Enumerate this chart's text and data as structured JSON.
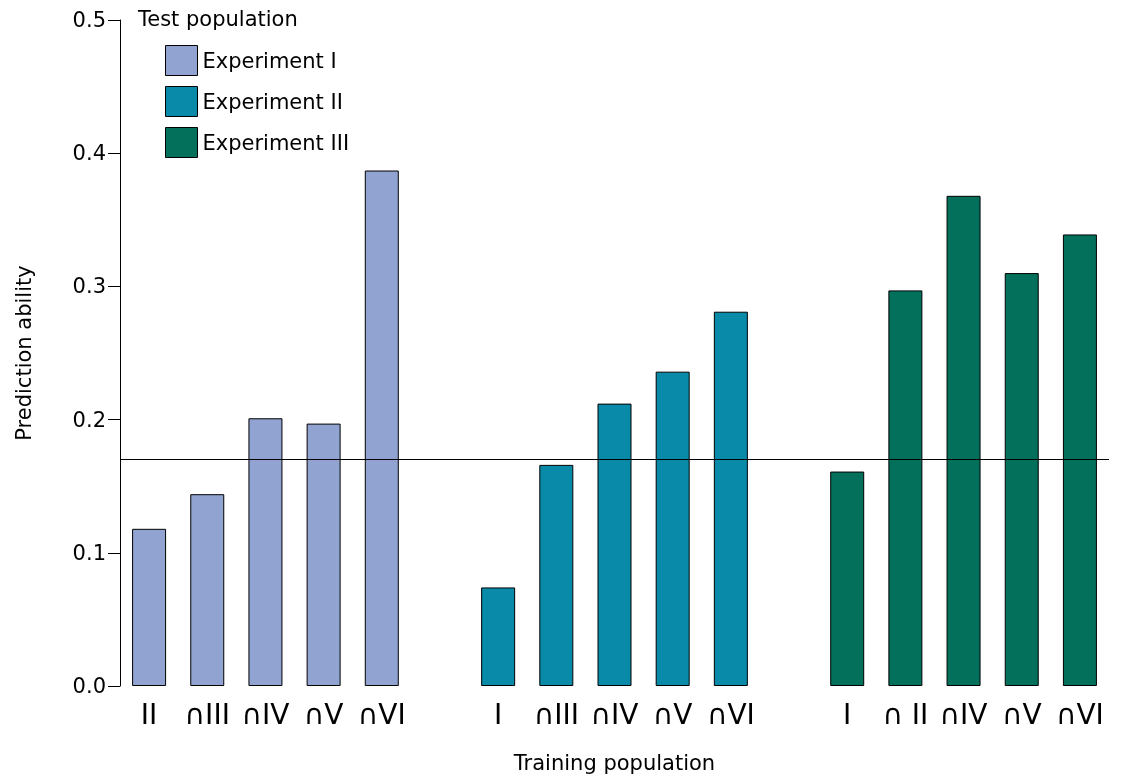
{
  "chart_data": {
    "type": "bar",
    "xlabel": "Training population",
    "ylabel": "Prediction ability",
    "legend_title": "Test population",
    "legend": "top left",
    "grid": false,
    "categories": [
      "II",
      "∩III",
      "∩IV",
      "∩V",
      "∩VI",
      null,
      "I",
      "∩III",
      "∩IV",
      "∩V",
      "∩VI",
      null,
      "I",
      "∩ II",
      "∩IV",
      "∩V",
      "∩VI"
    ],
    "series": [
      {
        "name": "Experiment I",
        "color": "#91a3d0",
        "values": [
          0.118,
          0.144,
          0.201,
          0.197,
          0.387,
          null,
          null,
          null,
          null,
          null,
          null,
          null,
          null,
          null,
          null,
          null,
          null
        ]
      },
      {
        "name": "Experiment II",
        "color": "#088aa8",
        "values": [
          null,
          null,
          null,
          null,
          null,
          null,
          0.074,
          0.166,
          0.212,
          0.236,
          0.281,
          null,
          null,
          null,
          null,
          null,
          null
        ]
      },
      {
        "name": "Experiment III",
        "color": "#03705c",
        "values": [
          null,
          null,
          null,
          null,
          null,
          null,
          null,
          null,
          null,
          null,
          null,
          null,
          0.161,
          0.297,
          0.368,
          0.31,
          0.339
        ]
      }
    ],
    "ylim": [
      0,
      0.5
    ],
    "yticks": [
      {
        "value": 0,
        "label": "0.0"
      },
      0.1,
      0.2,
      0.3,
      0.4,
      0.5
    ],
    "ref_lines": [
      {
        "axis": "y",
        "value": 0.17,
        "color": "#000000"
      }
    ]
  }
}
